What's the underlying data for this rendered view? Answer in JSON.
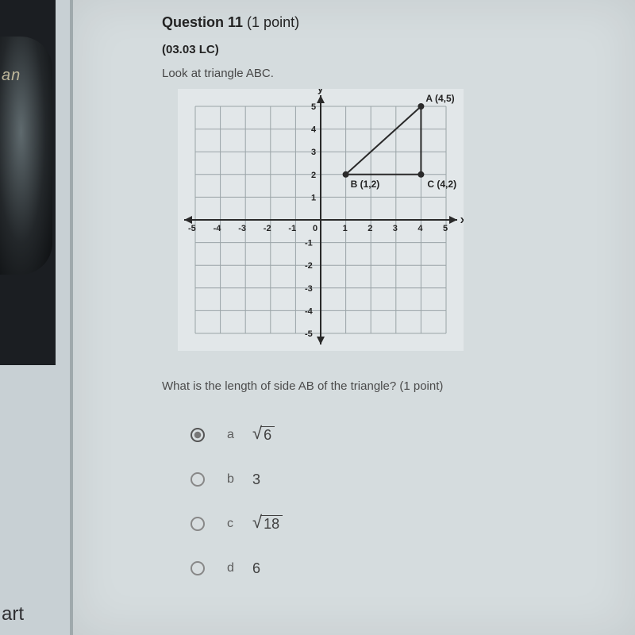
{
  "left": {
    "tag": "an",
    "art": "art"
  },
  "question": {
    "title_prefix": "Question 11 ",
    "title_suffix": "(1 point)",
    "code": "(03.03 LC)",
    "look": "Look at triangle ABC.",
    "prompt": "What is the length of side AB of the triangle? (1 point)"
  },
  "chart": {
    "type": "scatter",
    "bg": "#e2e7e9",
    "grid_color": "#9aa4a7",
    "axis_color": "#2a2a2a",
    "xlim": [
      -5,
      5
    ],
    "ylim": [
      -5,
      5
    ],
    "x_ticks": [
      -5,
      -4,
      -3,
      -2,
      -1,
      0,
      1,
      2,
      3,
      4,
      5
    ],
    "y_ticks": [
      -5,
      -4,
      -3,
      -2,
      -1,
      1,
      2,
      3,
      4,
      5
    ],
    "tick_fontsize": 11,
    "tick_color": "#232323",
    "x_label": "x",
    "y_label": "y",
    "points": {
      "A": {
        "x": 4,
        "y": 5,
        "label": "A (4,5)"
      },
      "B": {
        "x": 1,
        "y": 2,
        "label": "B (1,2)"
      },
      "C": {
        "x": 4,
        "y": 2,
        "label": "C (4,2)"
      }
    },
    "point_color": "#2a2a2a",
    "point_radius": 4,
    "edge_color": "#2a2a2a",
    "edge_width": 2,
    "edges": [
      [
        "A",
        "B"
      ],
      [
        "B",
        "C"
      ],
      [
        "C",
        "A"
      ]
    ]
  },
  "options": [
    {
      "letter": "a",
      "type": "sqrt",
      "val": "6",
      "selected": true
    },
    {
      "letter": "b",
      "type": "num",
      "val": "3",
      "selected": false
    },
    {
      "letter": "c",
      "type": "sqrt",
      "val": "18",
      "selected": false
    },
    {
      "letter": "d",
      "type": "num",
      "val": "6",
      "selected": false
    }
  ]
}
